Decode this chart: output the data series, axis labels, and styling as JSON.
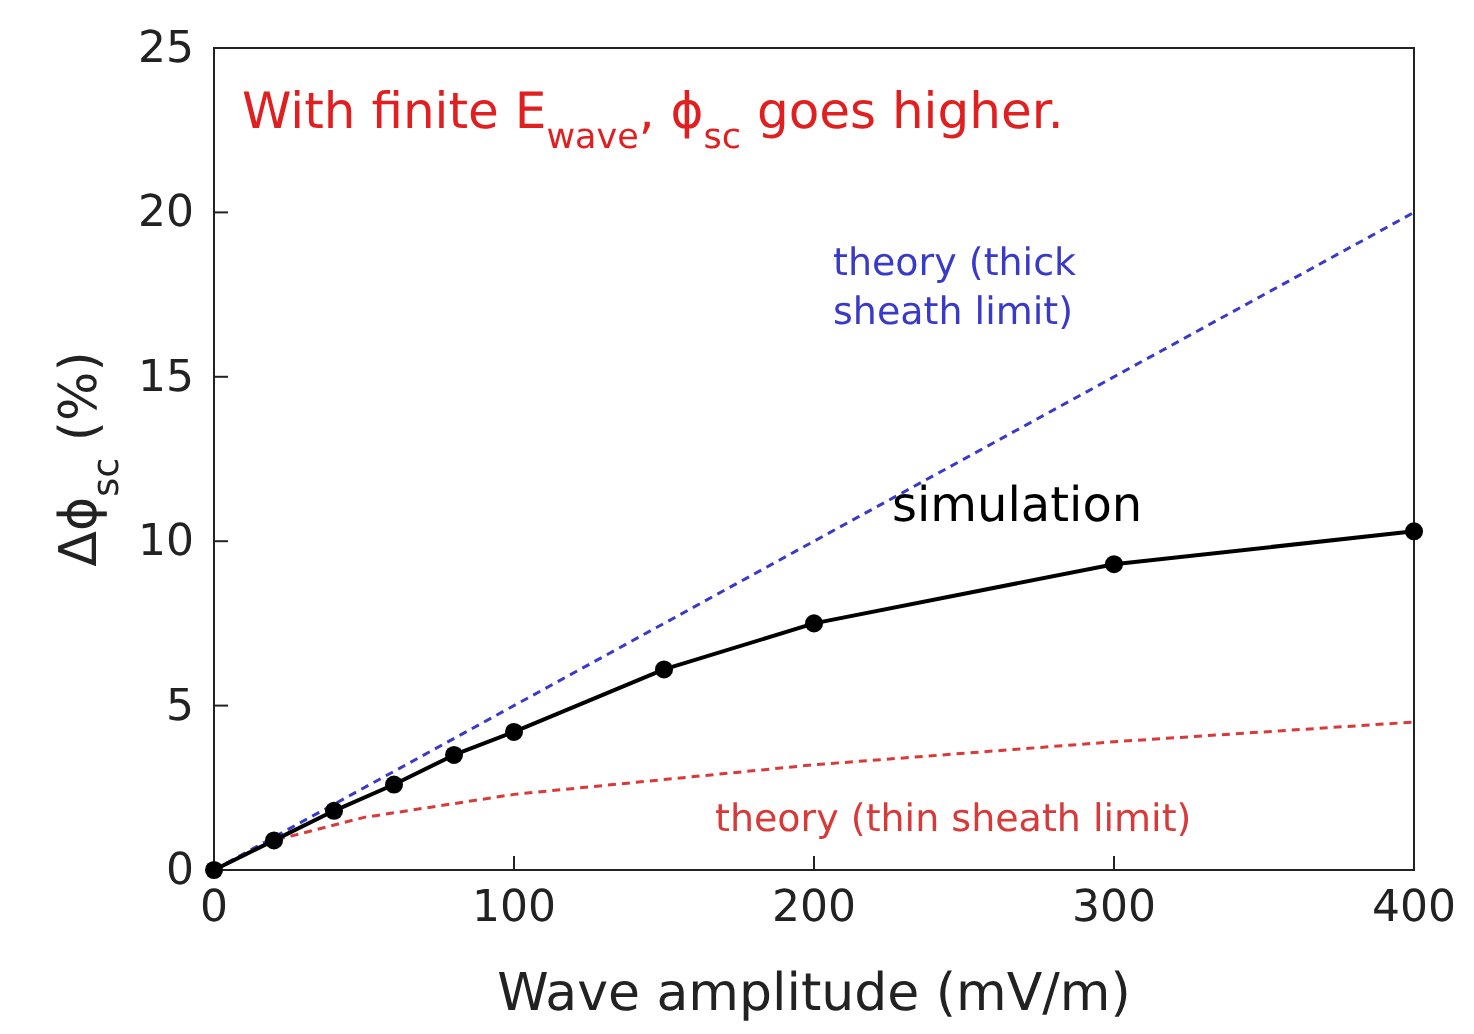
{
  "chart_data": {
    "type": "line",
    "xlabel": "Wave amplitude (mV/m)",
    "ylabel": "Δϕ$_{sc}$ (%)",
    "annotations": [
      "With finite E$_{wave}$, ϕ$_{sc}$ goes higher."
    ],
    "xlim": [
      0,
      400
    ],
    "xticks": [
      0,
      100,
      200,
      300,
      400
    ],
    "ylim": [
      0,
      25
    ],
    "yticks": [
      0,
      5,
      10,
      15,
      20,
      25
    ],
    "grid": false,
    "legend": false,
    "series": [
      {
        "name": "theory (thick sheath limit)",
        "color": "#3a3ac8",
        "line_style": "dashed",
        "marker": "none",
        "x": [
          0,
          400
        ],
        "values": [
          0,
          20
        ]
      },
      {
        "name": "theory (thin sheath limit)",
        "color": "#d83a3a",
        "line_style": "dashed",
        "marker": "none",
        "x": [
          0,
          20,
          50,
          100,
          200,
          300,
          400
        ],
        "values": [
          0,
          0.9,
          1.6,
          2.3,
          3.2,
          3.9,
          4.5
        ]
      },
      {
        "name": "simulation",
        "color": "#000000",
        "line_style": "solid",
        "marker": "circle",
        "x": [
          0,
          20,
          40,
          60,
          80,
          100,
          150,
          200,
          300,
          400
        ],
        "values": [
          0,
          0.9,
          1.8,
          2.6,
          3.5,
          4.2,
          6.1,
          7.5,
          9.3,
          10.3
        ]
      }
    ]
  }
}
